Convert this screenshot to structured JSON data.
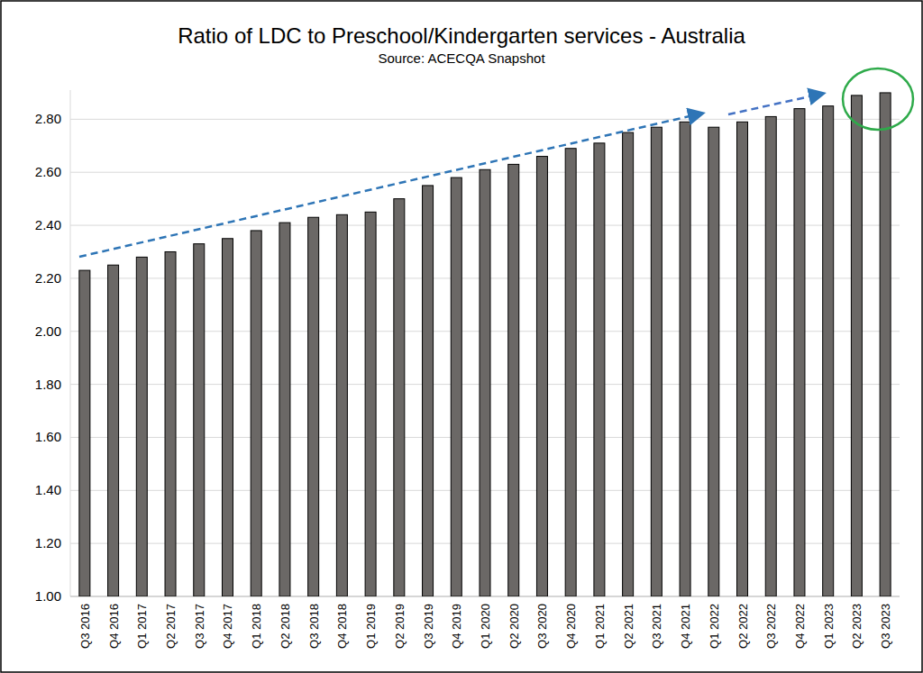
{
  "chart_data": {
    "type": "bar",
    "title": "Ratio of LDC to Preschool/Kindergarten services - Australia",
    "subtitle": "Source: ACECQA Snapshot",
    "categories": [
      "Q3 2016",
      "Q4 2016",
      "Q1 2017",
      "Q2 2017",
      "Q3 2017",
      "Q4 2017",
      "Q1 2018",
      "Q2 2018",
      "Q3 2018",
      "Q4 2018",
      "Q1 2019",
      "Q2 2019",
      "Q3 2019",
      "Q4 2019",
      "Q1 2020",
      "Q2 2020",
      "Q3 2020",
      "Q4 2020",
      "Q1 2021",
      "Q2 2021",
      "Q3 2021",
      "Q4 2021",
      "Q1 2022",
      "Q2 2022",
      "Q3 2022",
      "Q4 2022",
      "Q1 2023",
      "Q2 2023",
      "Q3 2023"
    ],
    "values": [
      2.23,
      2.25,
      2.28,
      2.3,
      2.33,
      2.35,
      2.38,
      2.41,
      2.43,
      2.44,
      2.45,
      2.5,
      2.55,
      2.58,
      2.61,
      2.63,
      2.66,
      2.69,
      2.71,
      2.75,
      2.77,
      2.79,
      2.77,
      2.79,
      2.81,
      2.84,
      2.85,
      2.89,
      2.9
    ],
    "color": "#6b6866",
    "ylim": [
      1,
      2.91
    ],
    "yticks": [
      {
        "value": 1,
        "label": "1.00"
      },
      {
        "value": 1.2,
        "label": "1.20"
      },
      {
        "value": 1.4,
        "label": "1.40"
      },
      {
        "value": 1.6,
        "label": "1.60"
      },
      {
        "value": 1.8,
        "label": "1.80"
      },
      {
        "value": 2,
        "label": "2.00"
      },
      {
        "value": 2.2,
        "label": "2.20"
      },
      {
        "value": 2.4,
        "label": "2.40"
      },
      {
        "value": 2.6,
        "label": "2.60"
      },
      {
        "value": 2.8,
        "label": "2.80"
      }
    ],
    "grid": true
  }
}
